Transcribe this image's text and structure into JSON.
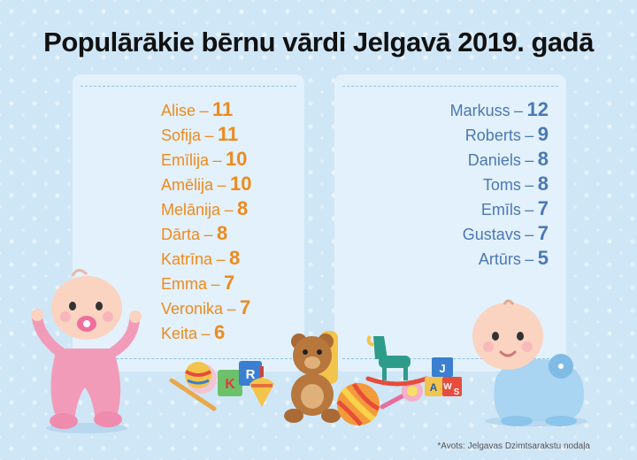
{
  "title": "Populārākie bērnu vārdi Jelgavā 2019. gadā",
  "girls": [
    {
      "name": "Alise",
      "count": "11"
    },
    {
      "name": "Sofija",
      "count": "11"
    },
    {
      "name": "Emīlija",
      "count": "10"
    },
    {
      "name": "Amēlija",
      "count": "10"
    },
    {
      "name": "Melānija",
      "count": "8"
    },
    {
      "name": "Dārta",
      "count": "8"
    },
    {
      "name": "Katrīna",
      "count": "8"
    },
    {
      "name": "Emma",
      "count": "7"
    },
    {
      "name": "Veronika",
      "count": "7"
    },
    {
      "name": "Keita",
      "count": "6"
    }
  ],
  "boys": [
    {
      "name": "Markuss",
      "count": "12"
    },
    {
      "name": "Roberts",
      "count": "9"
    },
    {
      "name": "Daniels",
      "count": "8"
    },
    {
      "name": "Toms",
      "count": "8"
    },
    {
      "name": "Emīls",
      "count": "7"
    },
    {
      "name": "Gustavs",
      "count": "7"
    },
    {
      "name": "Artūrs",
      "count": "5"
    }
  ],
  "separator": "–",
  "source": "*Avots: Jelgavas Dzimtsarakstu nodaļa",
  "toys": {
    "cube_a": [
      "K",
      "R"
    ],
    "cube_b": [
      "J",
      "A",
      "W",
      "S"
    ]
  },
  "colors": {
    "girls": "#ee8a1c",
    "boys": "#4a78b5",
    "background": "#cfe6f7",
    "panel": "#e3f1fc"
  },
  "icons": [
    "baby-girl-icon",
    "baby-boy-icon",
    "toy-rattle-icon",
    "toy-ball-icon",
    "letter-block-icon",
    "spinning-top-icon",
    "teddy-bear-icon",
    "striped-ball-icon",
    "rocking-horse-icon"
  ]
}
